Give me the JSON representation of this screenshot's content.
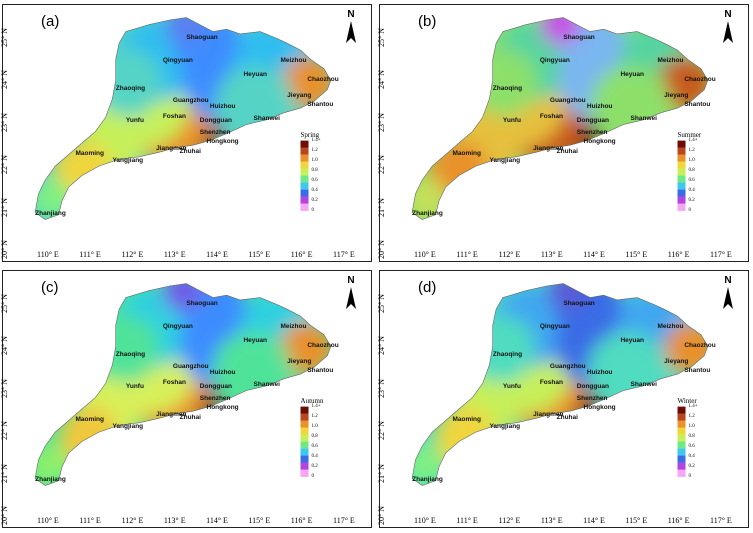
{
  "panels": [
    {
      "label": "(a)",
      "season": "Spring",
      "colors": [
        "#5a7ff0",
        "#3c8cff",
        "#2fbdf0",
        "#54d4c5",
        "#7ff082",
        "#c6f05a",
        "#f0d53c",
        "#e9912c",
        "#b8461f",
        "#7a1d0e"
      ],
      "cities": [
        "Shaoguan",
        "Qingyuan",
        "Meizhou",
        "Heyuan",
        "Chaozhou",
        "Zhaoqing",
        "Guangzhou",
        "Huizhou",
        "Jieyang",
        "Shantou",
        "Yunfu",
        "Dongguan",
        "Shanwei",
        "Foshan",
        "Shenzhen",
        "Jiangmen",
        "Hongkong",
        "Zhuhai",
        "Maoming",
        "Yangjiang",
        "Zhanjiang"
      ]
    },
    {
      "label": "(b)",
      "season": "Summer",
      "colors": [
        "#c453e6",
        "#7ab6f0",
        "#54d4a0",
        "#8ce06a",
        "#c6e05a",
        "#e6c03c",
        "#e9912c",
        "#c85a1f",
        "#8a2410",
        "#5a0f05"
      ],
      "cities": [
        "Shaoguan",
        "Qingyuan",
        "Meizhou",
        "Heyuan",
        "Chaozhou",
        "Zhaoqing",
        "Guangzhou",
        "Huizhou",
        "Jieyang",
        "Shantou",
        "Yunfu",
        "Dongguan",
        "Shanwei",
        "Foshan",
        "Shenzhen",
        "Jiangmen",
        "Hongkong",
        "Zhuhai",
        "Maoming",
        "Yangjiang",
        "Zhanjiang"
      ]
    },
    {
      "label": "(c)",
      "season": "Autumn",
      "colors": [
        "#6f5ce6",
        "#3c8cff",
        "#2fd0e0",
        "#4fe39a",
        "#8cf06a",
        "#d8f05a",
        "#f0c83c",
        "#e9912c",
        "#b8461f",
        "#7a1d0e"
      ],
      "cities": [
        "Shaoguan",
        "Qingyuan",
        "Meizhou",
        "Heyuan",
        "Chaozhou",
        "Zhaoqing",
        "Guangzhou",
        "Huizhou",
        "Jieyang",
        "Shantou",
        "Yunfu",
        "Dongguan",
        "Shanwei",
        "Foshan",
        "Shenzhen",
        "Jiangmen",
        "Hongkong",
        "Zhuhai",
        "Maoming",
        "Yangjiang",
        "Zhanjiang"
      ]
    },
    {
      "label": "(d)",
      "season": "Winter",
      "colors": [
        "#5a5cd6",
        "#3b6ce6",
        "#3fa7f0",
        "#4fdcc0",
        "#7ff082",
        "#c6f05a",
        "#f0d53c",
        "#e9912c",
        "#b8461f",
        "#7a1d0e"
      ],
      "cities": [
        "Shaoguan",
        "Qingyuan",
        "Meizhou",
        "Heyuan",
        "Chaozhou",
        "Zhaoqing",
        "Guangzhou",
        "Huizhou",
        "Jieyang",
        "Shantou",
        "Yunfu",
        "Dongguan",
        "Shanwei",
        "Foshan",
        "Shenzhen",
        "Jiangmen",
        "Hongkong",
        "Zhuhai",
        "Maoming",
        "Yangjiang",
        "Zhanjiang"
      ]
    }
  ],
  "north_label": "N",
  "lon_ticks": [
    "110° E",
    "111° E",
    "112° E",
    "113° E",
    "114° E",
    "115° E",
    "116° E",
    "117° E"
  ],
  "lat_ticks": [
    "25° N",
    "24° N",
    "23° N",
    "22° N",
    "21° N",
    "20° N"
  ],
  "legend_values": [
    "1.4+",
    "1.2",
    "1.0",
    "0.8",
    "0.6",
    "0.4",
    "0.2",
    "0"
  ],
  "legend_colors": [
    "#6b0d05",
    "#b8461f",
    "#e9912c",
    "#f0d53c",
    "#c6f05a",
    "#6fe88a",
    "#3fc7f0",
    "#3b6ce6",
    "#b344e0",
    "#f6a6f2"
  ]
}
